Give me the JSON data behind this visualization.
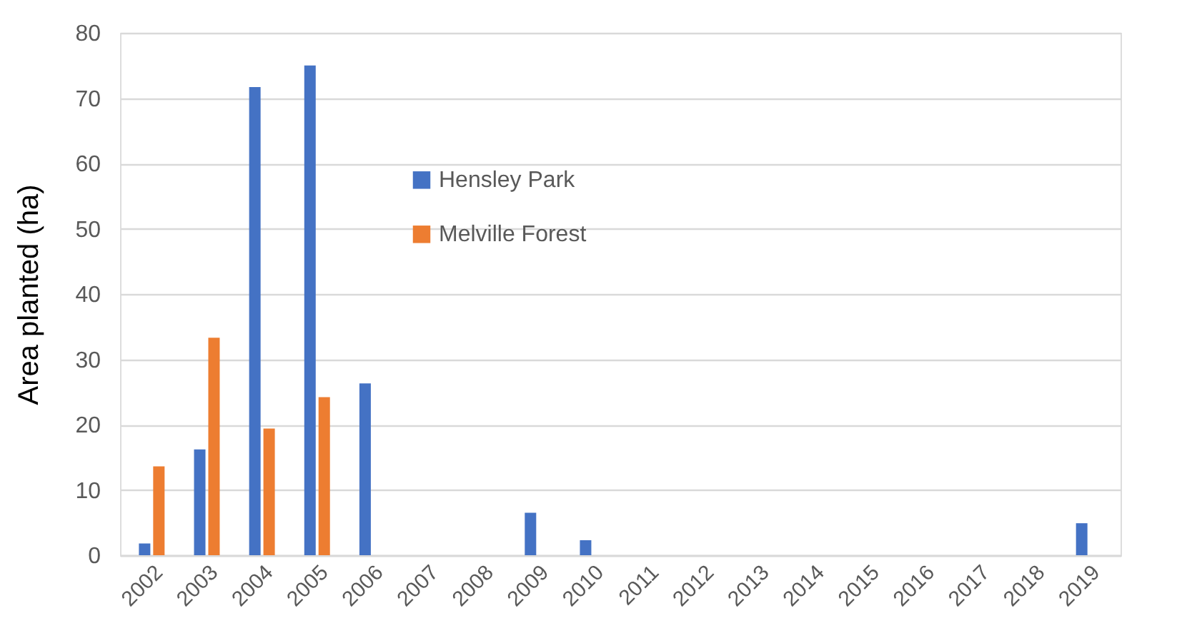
{
  "chart_data": {
    "type": "bar",
    "ylabel": "Area planted (ha)",
    "categories": [
      "2002",
      "2003",
      "2004",
      "2005",
      "2006",
      "2007",
      "2008",
      "2009",
      "2010",
      "2011",
      "2012",
      "2013",
      "2014",
      "2015",
      "2016",
      "2017",
      "2018",
      "2019"
    ],
    "series": [
      {
        "name": "Hensley Park",
        "color": "#4472c4",
        "values": [
          1.8,
          16.2,
          71.7,
          75.0,
          26.3,
          null,
          null,
          6.5,
          2.3,
          null,
          null,
          null,
          null,
          null,
          null,
          null,
          null,
          4.9
        ]
      },
      {
        "name": "Melville Forest",
        "color": "#ed7d31",
        "values": [
          13.6,
          33.3,
          19.4,
          24.2,
          null,
          null,
          null,
          null,
          null,
          null,
          null,
          null,
          null,
          null,
          null,
          null,
          null,
          null
        ]
      }
    ],
    "ylim": [
      0,
      80
    ],
    "yticks": [
      0,
      10,
      20,
      30,
      40,
      50,
      60,
      70,
      80
    ],
    "grid": "y",
    "legend": "top"
  }
}
